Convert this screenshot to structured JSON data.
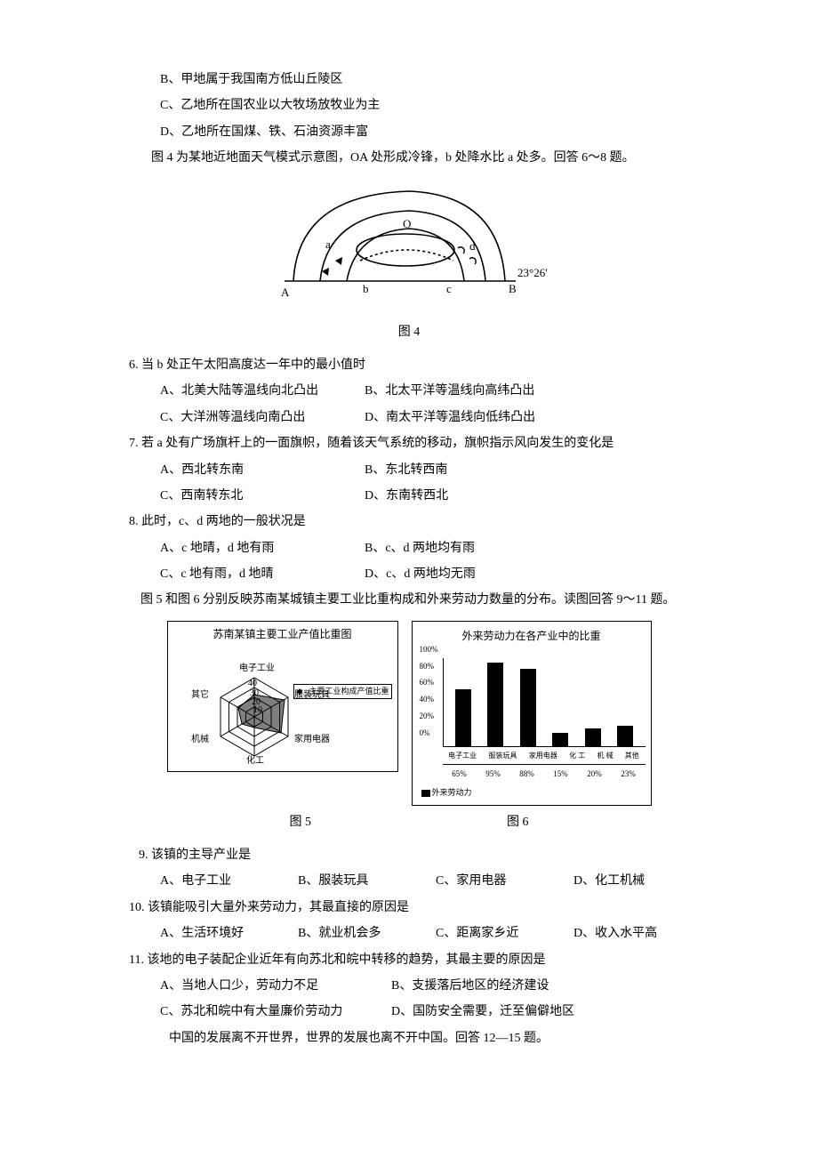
{
  "opt_b": "B、甲地属于我国南方低山丘陵区",
  "opt_c": "C、乙地所在国农业以大牧场放牧业为主",
  "opt_d": "D、乙地所在国煤、铁、石油资源丰富",
  "intro_4": "图 4 为某地近地面天气模式示意图，OA 处形成冷锋，b 处降水比 a 处多。回答 6～8 题。",
  "fig4": {
    "caption": "图 4",
    "label_O": "O",
    "label_a": "a",
    "label_b": "b",
    "label_c": "c",
    "label_d": "d",
    "label_A": "A",
    "label_B": "B",
    "lat_label": "23°26′"
  },
  "q6": {
    "stem": "6. 当 b 处正午太阳高度达一年中的最小值时",
    "A": "A、北美大陆等温线向北凸出",
    "B": "B、北太平洋等温线向高纬凸出",
    "C": "C、大洋洲等温线向南凸出",
    "D": "D、南太平洋等温线向低纬凸出"
  },
  "q7": {
    "stem": "7. 若 a 处有广场旗杆上的一面旗帜，随着该天气系统的移动，旗帜指示风向发生的变化是",
    "A": "A、西北转东南",
    "B": "B、东北转西南",
    "C": "C、西南转东北",
    "D": "D、东南转西北"
  },
  "q8": {
    "stem": "8. 此时，c、d 两地的一般状况是",
    "A": "A、c 地晴，d 地有雨",
    "B": "B、c、d 两地均有雨",
    "C": "C、c 地有雨，d 地晴",
    "D": "D、c、d 两地均无雨"
  },
  "intro_5_6": "图 5 和图 6 分别反映苏南某城镇主要工业比重构成和外来劳动力数量的分布。读图回答 9～11 题。",
  "fig5": {
    "title": "苏南某镇主要工业产值比重图",
    "axes": [
      "电子工业",
      "服装玩具",
      "家用电器",
      "化工",
      "机械",
      "其它"
    ],
    "rings": [
      10,
      20,
      30,
      40
    ],
    "legend": "主要工业构成产值比重",
    "caption": "图 5"
  },
  "fig6": {
    "title": "外来劳动力在各产业中的比重",
    "yticks": [
      "0%",
      "20%",
      "40%",
      "60%",
      "80%",
      "100%"
    ],
    "categories": [
      "电子工业",
      "服装玩具",
      "家用电器",
      "化 工",
      "机 械",
      "其他"
    ],
    "values": [
      65,
      95,
      88,
      15,
      20,
      23
    ],
    "value_labels": [
      "65%",
      "95%",
      "88%",
      "15%",
      "20%",
      "23%"
    ],
    "legend_label": "外来劳动力",
    "caption": "图 6",
    "bar_color": "#000000",
    "background_color": "#ffffff"
  },
  "q9": {
    "stem": "9. 该镇的主导产业是",
    "A": "A、电子工业",
    "B": "B、服装玩具",
    "C": "C、家用电器",
    "D": "D、化工机械"
  },
  "q10": {
    "stem": "10. 该镇能吸引大量外来劳动力，其最直接的原因是",
    "A": "A、生活环境好",
    "B": "B、就业机会多",
    "C": "C、距离家乡近",
    "D": "D、收入水平高"
  },
  "q11": {
    "stem": "11. 该地的电子装配企业近年有向苏北和皖中转移的趋势，其最主要的原因是",
    "A": "A、当地人口少，劳动力不足",
    "B": "B、支援落后地区的经济建设",
    "C": "C、苏北和皖中有大量廉价劳动力",
    "D": "D、国防安全需要，迁至偏僻地区"
  },
  "closing": "中国的发展离不开世界，世界的发展也离不开中国。回答 12—15 题。"
}
